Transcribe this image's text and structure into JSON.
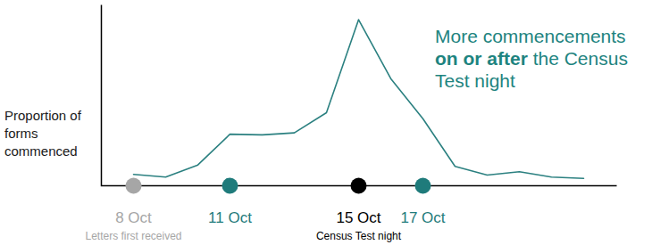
{
  "chart_data": {
    "type": "line",
    "y_label": "Proportion of forms commenced",
    "categories": [
      "8 Oct",
      null,
      null,
      "11 Oct",
      null,
      null,
      null,
      "15 Oct",
      null,
      "17 Oct",
      null,
      null,
      null,
      null,
      null
    ],
    "values": [
      1.7,
      1.3,
      3.1,
      7.7,
      7.6,
      7.9,
      10.9,
      24.8,
      16.0,
      10.0,
      2.9,
      1.6,
      2.1,
      1.3,
      1.1
    ],
    "color": "#2b8080",
    "ylim": [
      0,
      27
    ],
    "tick_labels": "x",
    "highlights": [
      {
        "category": "8 Oct",
        "color": "#a6a6a6",
        "note": "Letters first received"
      },
      {
        "category": "11 Oct",
        "color": "#1f7b7b"
      },
      {
        "category": "15 Oct",
        "color": "#000000",
        "note": "Census Test night"
      },
      {
        "category": "17 Oct",
        "color": "#1f7b7b"
      }
    ],
    "annotation": {
      "color": "#1e8480",
      "parts": [
        {
          "text": "More commencements "
        },
        {
          "text": "on or after",
          "bold": true
        },
        {
          "text": " the Census Test night"
        }
      ]
    }
  }
}
